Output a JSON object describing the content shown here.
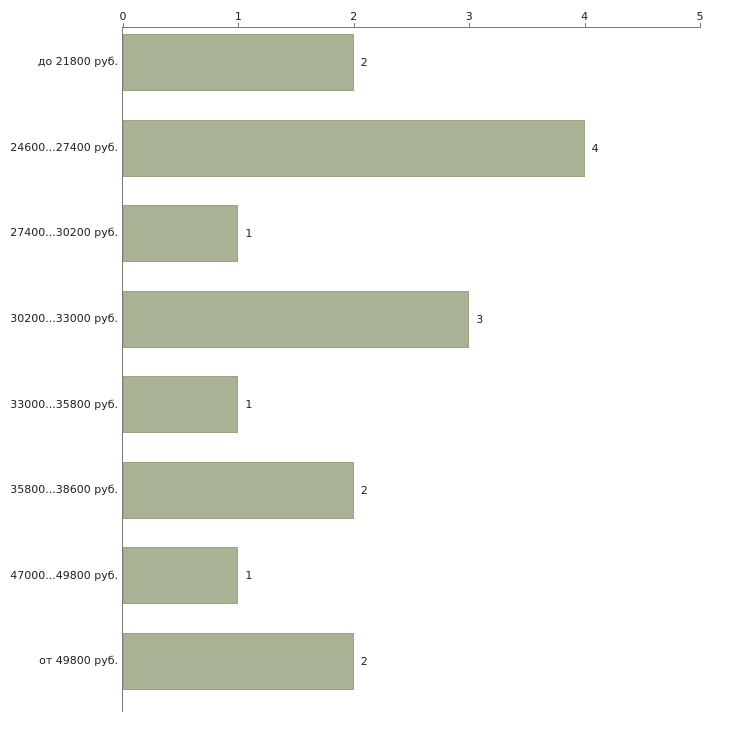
{
  "chart_data": {
    "type": "bar",
    "orientation": "horizontal",
    "title": "",
    "xlabel": "",
    "ylabel": "",
    "categories": [
      "до 21800 руб.",
      "24600...27400 руб.",
      "27400...30200 руб.",
      "30200...33000 руб.",
      "33000...35800 руб.",
      "35800...38600 руб.",
      "47000...49800 руб.",
      "от 49800 руб."
    ],
    "values": [
      2,
      4,
      1,
      3,
      1,
      2,
      1,
      2
    ],
    "value_labels": [
      "2",
      "4",
      "1",
      "3",
      "1",
      "2",
      "1",
      "2"
    ],
    "xlim": [
      0,
      5
    ],
    "x_ticks": [
      "0",
      "1",
      "2",
      "3",
      "4",
      "5"
    ],
    "x_axis_position": "top",
    "grid": "off",
    "legend": "none",
    "colors": {
      "bar_fill": "#a9b294",
      "bar_border": "#99a483",
      "axis": "#7a7a7a",
      "text": "#222222",
      "background": "#ffffff"
    }
  }
}
